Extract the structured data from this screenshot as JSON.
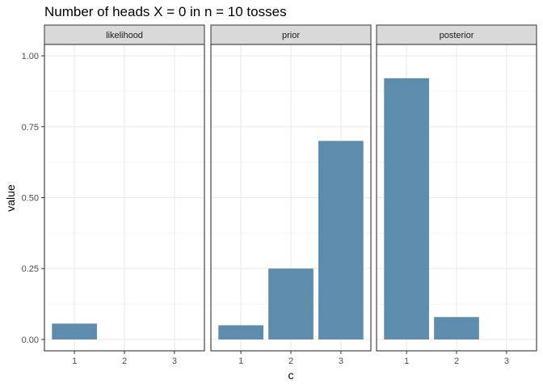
{
  "chart_data": {
    "type": "bar",
    "title": "Number of heads X = 0 in n = 10 tosses",
    "xlabel": "c",
    "ylabel": "value",
    "categories": [
      "1",
      "2",
      "3"
    ],
    "ylim": [
      -0.04,
      1.04
    ],
    "yticks": [
      0.0,
      0.25,
      0.5,
      0.75,
      1.0
    ],
    "ytick_labels": [
      "0.00",
      "0.25",
      "0.50",
      "0.75",
      "1.00"
    ],
    "grid": true,
    "bar_color": "#5e8cad",
    "facets": [
      {
        "label": "likelihood",
        "values": [
          0.056,
          0.0,
          0.0
        ]
      },
      {
        "label": "prior",
        "values": [
          0.05,
          0.25,
          0.7
        ]
      },
      {
        "label": "posterior",
        "values": [
          0.921,
          0.079,
          0.0
        ]
      }
    ]
  }
}
